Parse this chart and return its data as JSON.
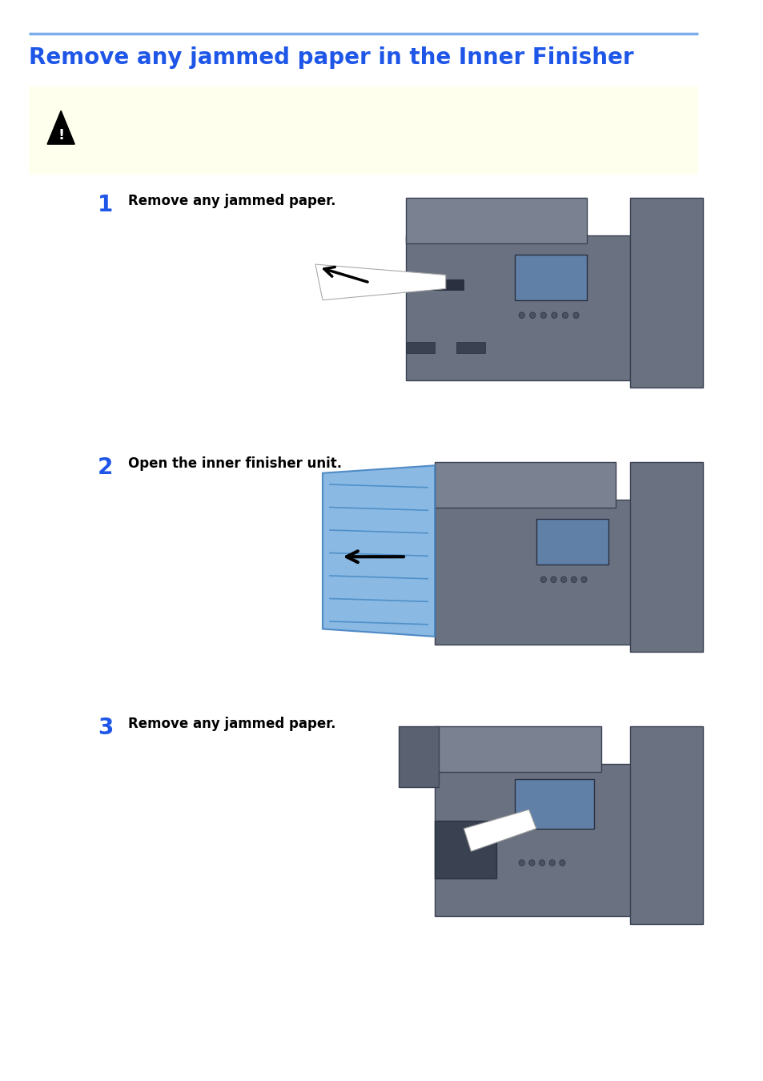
{
  "title": "Remove any jammed paper in the Inner Finisher",
  "title_color": "#1e56e8",
  "title_fontsize": 20,
  "separator_color": "#7aaee8",
  "warning_bg_color": "#ffffee",
  "bg_color": "#ffffff",
  "step1_num": "1",
  "step1_text": "Remove any jammed paper.",
  "step2_num": "2",
  "step2_text": "Open the inner finisher unit.",
  "step3_num": "3",
  "step3_text": "Remove any jammed paper.",
  "step_num_color": "#1e56e8",
  "step_text_color": "#000000",
  "figure_width": 9.54,
  "figure_height": 13.5
}
